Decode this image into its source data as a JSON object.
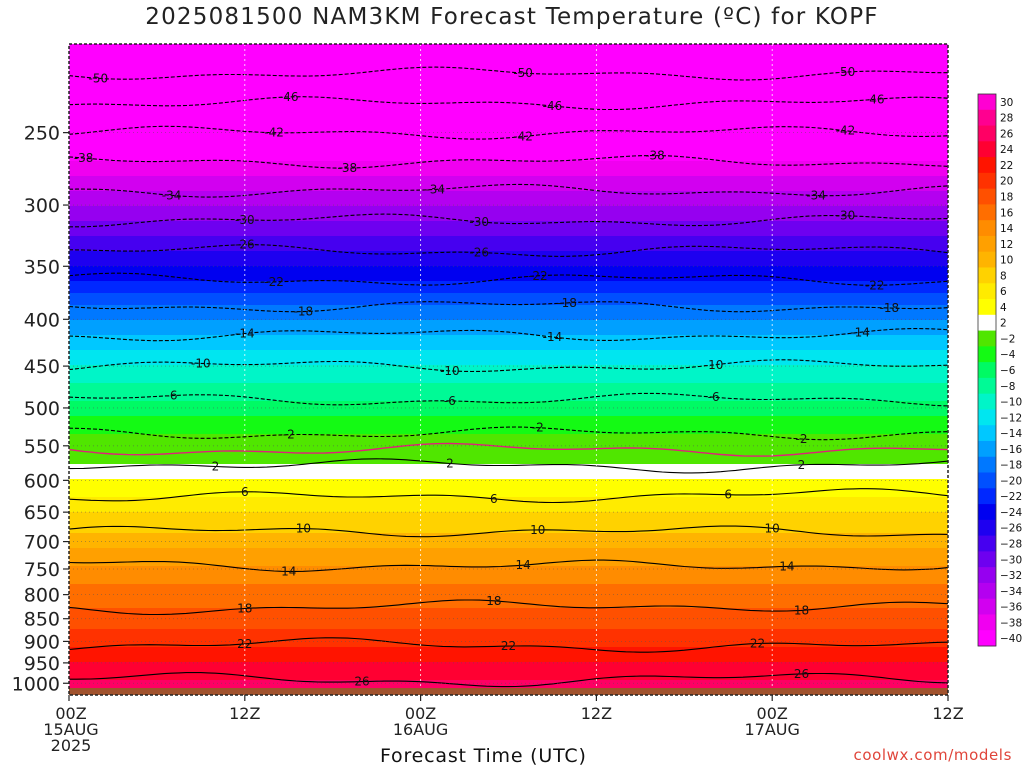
{
  "header": {
    "title": "2025081500 NAM3KM Forecast Temperature (ºC) for KOPF"
  },
  "footer": {
    "credit": "coolwx.com/models"
  },
  "colors": {
    "contour_line": "#000000",
    "freezing_line": "#e0207a",
    "ground": "#a0522d",
    "grid": "#ffffff"
  },
  "chart_data": {
    "type": "heatmap",
    "title": "2025081500 NAM3KM Forecast Temperature (ºC) for KOPF",
    "xlabel": "Forecast Time (UTC)",
    "ylabel": "",
    "x_range_hours": [
      0,
      60
    ],
    "x_ticks": [
      {
        "hour": 0,
        "lines": [
          "00Z",
          "15AUG",
          "2025"
        ]
      },
      {
        "hour": 12,
        "lines": [
          "12Z"
        ]
      },
      {
        "hour": 24,
        "lines": [
          "00Z",
          "16AUG"
        ]
      },
      {
        "hour": 36,
        "lines": [
          "12Z"
        ]
      },
      {
        "hour": 48,
        "lines": [
          "00Z",
          "17AUG"
        ]
      },
      {
        "hour": 60,
        "lines": [
          "12Z"
        ]
      }
    ],
    "y_axis": "pressure (hPa), log scale, inverted",
    "y_range": [
      200,
      1030
    ],
    "y_ticks": [
      250,
      300,
      350,
      400,
      450,
      500,
      550,
      600,
      650,
      700,
      750,
      800,
      850,
      900,
      950,
      1000
    ],
    "colorbar": {
      "levels": [
        30,
        28,
        26,
        24,
        22,
        20,
        18,
        16,
        14,
        12,
        10,
        8,
        6,
        4,
        2,
        -2,
        -4,
        -6,
        -8,
        -10,
        -12,
        -14,
        -16,
        -18,
        -20,
        -22,
        -24,
        -26,
        -28,
        -30,
        -32,
        -34,
        -36,
        -38,
        -40
      ],
      "labels": [
        "30",
        "28",
        "26",
        "24",
        "22",
        "20",
        "18",
        "16",
        "14",
        "12",
        "10",
        "8",
        "6",
        "4",
        "2",
        "−2",
        "−4",
        "−6",
        "−8",
        "−10",
        "−12",
        "−14",
        "−16",
        "−18",
        "−20",
        "−22",
        "−24",
        "−26",
        "−28",
        "−30",
        "−32",
        "−34",
        "−36",
        "−38",
        "−40"
      ],
      "colors": [
        "#ff00d2",
        "#ff0090",
        "#ff0064",
        "#ff0032",
        "#ff1400",
        "#ff3200",
        "#ff5000",
        "#ff6e00",
        "#ff8c00",
        "#ffa000",
        "#ffb400",
        "#ffd200",
        "#ffeb00",
        "#ffff00",
        "#ffffff",
        "#50e600",
        "#14fa14",
        "#00fa64",
        "#00fa96",
        "#00f5c8",
        "#00e6f0",
        "#00c8ff",
        "#00a0ff",
        "#0078ff",
        "#0050ff",
        "#0028ff",
        "#0000f0",
        "#1e00f0",
        "#4600f0",
        "#6e00f0",
        "#9600f0",
        "#b400f0",
        "#d200f0",
        "#f000f0",
        "#ff00ff"
      ]
    },
    "profile_t0": [
      {
        "p": 200,
        "t": -54
      },
      {
        "p": 250,
        "t": -42
      },
      {
        "p": 300,
        "t": -32
      },
      {
        "p": 350,
        "t": -24
      },
      {
        "p": 400,
        "t": -16
      },
      {
        "p": 450,
        "t": -10
      },
      {
        "p": 500,
        "t": -5
      },
      {
        "p": 550,
        "t": -0.5
      },
      {
        "p": 600,
        "t": 4
      },
      {
        "p": 650,
        "t": 8
      },
      {
        "p": 700,
        "t": 11
      },
      {
        "p": 750,
        "t": 14.5
      },
      {
        "p": 800,
        "t": 17
      },
      {
        "p": 850,
        "t": 19
      },
      {
        "p": 900,
        "t": 21.5
      },
      {
        "p": 950,
        "t": 24
      },
      {
        "p": 1000,
        "t": 26.5
      },
      {
        "p": 1030,
        "t": 28
      }
    ],
    "contours": [
      {
        "value": -50,
        "label": "-50",
        "label_hours": [
          2,
          31,
          53
        ]
      },
      {
        "value": -46,
        "label": "-46",
        "label_hours": [
          15,
          33,
          55
        ]
      },
      {
        "value": -42,
        "label": "-42",
        "label_hours": [
          14,
          31,
          53
        ]
      },
      {
        "value": -38,
        "label": "-38",
        "label_hours": [
          1,
          19,
          40
        ]
      },
      {
        "value": -34,
        "label": "-34",
        "label_hours": [
          7,
          25,
          51
        ]
      },
      {
        "value": -30,
        "label": "-30",
        "label_hours": [
          12,
          28,
          53
        ]
      },
      {
        "value": -26,
        "label": "-26",
        "label_hours": [
          12,
          28
        ]
      },
      {
        "value": -22,
        "label": "-22",
        "label_hours": [
          14,
          32,
          55
        ]
      },
      {
        "value": -18,
        "label": "-18",
        "label_hours": [
          16,
          34,
          56
        ]
      },
      {
        "value": -14,
        "label": "-14",
        "label_hours": [
          12,
          33,
          54
        ]
      },
      {
        "value": -10,
        "label": "-10",
        "label_hours": [
          9,
          26,
          44
        ]
      },
      {
        "value": -6,
        "label": "-6",
        "label_hours": [
          7,
          26,
          44
        ]
      },
      {
        "value": -2,
        "label": "-2",
        "label_hours": [
          15,
          32,
          50
        ]
      },
      {
        "value": 0,
        "label": "",
        "label_hours": []
      },
      {
        "value": 2,
        "label": "2",
        "label_hours": [
          10,
          26,
          50
        ]
      },
      {
        "value": 6,
        "label": "6",
        "label_hours": [
          12,
          29,
          45
        ]
      },
      {
        "value": 10,
        "label": "10",
        "label_hours": [
          16,
          32,
          48
        ]
      },
      {
        "value": 14,
        "label": "14",
        "label_hours": [
          15,
          31,
          49
        ]
      },
      {
        "value": 18,
        "label": "18",
        "label_hours": [
          12,
          29,
          50
        ]
      },
      {
        "value": 22,
        "label": "22",
        "label_hours": [
          12,
          30,
          47
        ]
      },
      {
        "value": 26,
        "label": "26",
        "label_hours": [
          20,
          50
        ]
      }
    ],
    "grid": true
  }
}
